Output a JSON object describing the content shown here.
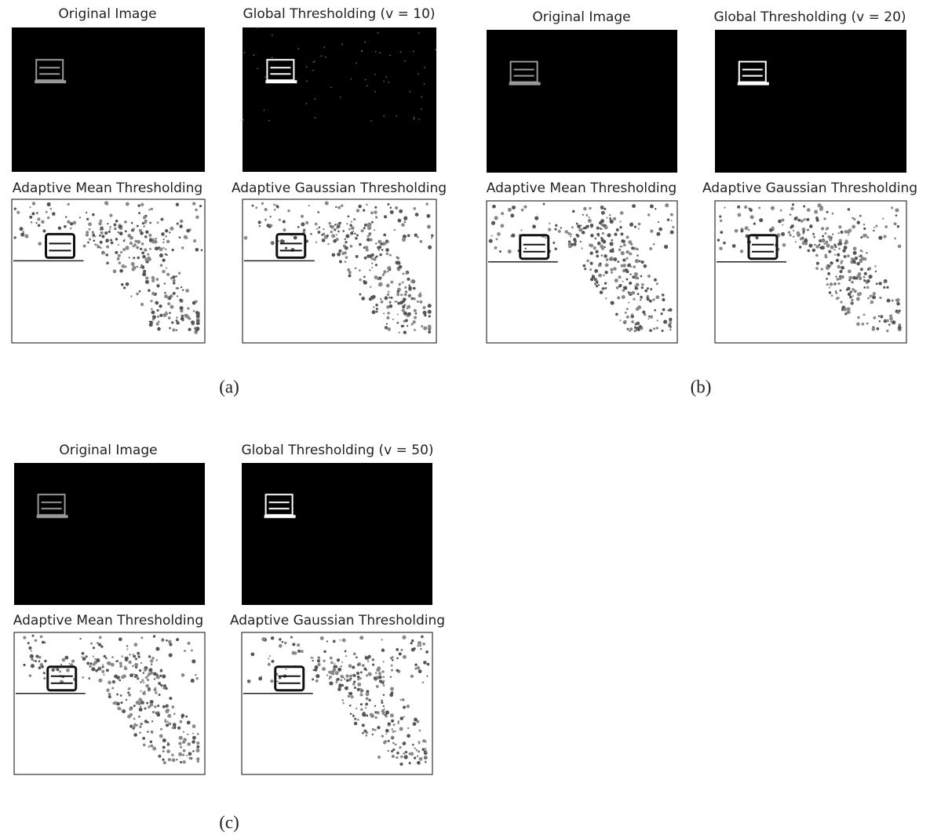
{
  "panels": [
    {
      "label": "(a)",
      "images": [
        {
          "title": "Original Image",
          "kind": "original"
        },
        {
          "title": "Global Thresholding (v = 10)",
          "kind": "global"
        },
        {
          "title": "Adaptive Mean Thresholding",
          "kind": "adaptive"
        },
        {
          "title": "Adaptive Gaussian Thresholding",
          "kind": "adaptive"
        }
      ]
    },
    {
      "label": "(b)",
      "images": [
        {
          "title": "Original Image",
          "kind": "original"
        },
        {
          "title": "Global Thresholding (v = 20)",
          "kind": "global"
        },
        {
          "title": "Adaptive Mean Thresholding",
          "kind": "adaptive"
        },
        {
          "title": "Adaptive Gaussian Thresholding",
          "kind": "adaptive"
        }
      ]
    },
    {
      "label": "(c)",
      "images": [
        {
          "title": "Original Image",
          "kind": "original"
        },
        {
          "title": "Global Thresholding (v = 50)",
          "kind": "global"
        },
        {
          "title": "Adaptive Mean Thresholding",
          "kind": "adaptive"
        },
        {
          "title": "Adaptive Gaussian Thresholding",
          "kind": "adaptive"
        }
      ]
    }
  ]
}
